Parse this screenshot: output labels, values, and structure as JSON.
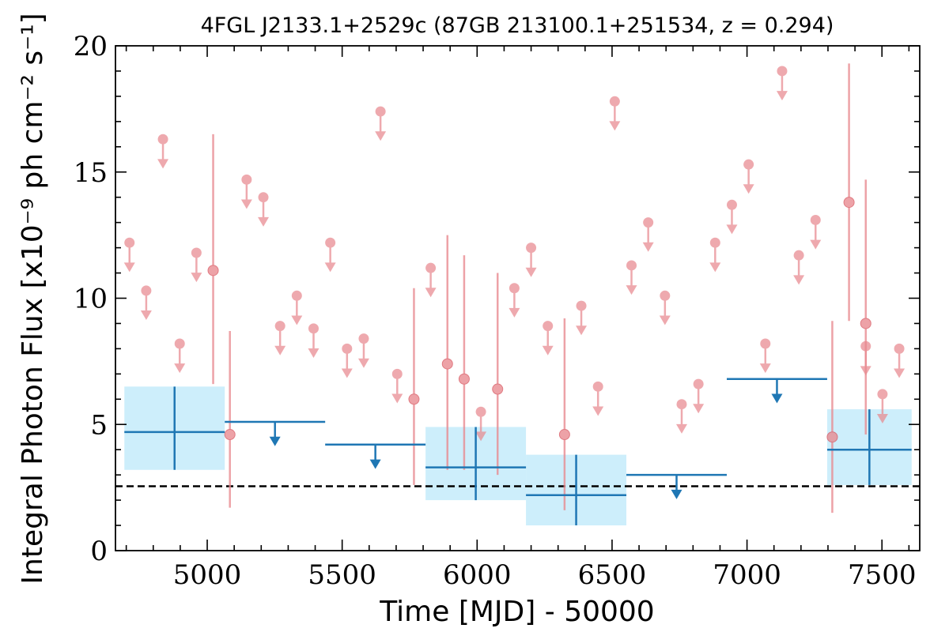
{
  "chart_data": {
    "type": "scatter",
    "title": "4FGL J2133.1+2529c (87GB 213100.1+251534, z = 0.294)",
    "xlabel": "Time [MJD] - 50000",
    "ylabel": "Integral Photon Flux [x10⁻⁹ ph cm⁻² s⁻¹]",
    "xlim": [
      4660,
      7640
    ],
    "ylim": [
      0,
      20
    ],
    "x_ticks": [
      5000,
      5500,
      6000,
      6500,
      7000,
      7500
    ],
    "y_ticks": [
      0,
      5,
      10,
      15,
      20
    ],
    "reference_line": {
      "y": 2.55,
      "style": "dashed",
      "color": "#000000"
    },
    "series": [
      {
        "color": "#e8898f",
        "upper_limits": [
          {
            "x": 4712,
            "y": 12.2
          },
          {
            "x": 4774,
            "y": 10.3
          },
          {
            "x": 4836,
            "y": 16.3
          },
          {
            "x": 4898,
            "y": 8.2
          },
          {
            "x": 4960,
            "y": 11.8
          },
          {
            "x": 5146,
            "y": 14.7
          },
          {
            "x": 5208,
            "y": 14.0
          },
          {
            "x": 5270,
            "y": 8.9
          },
          {
            "x": 5332,
            "y": 10.1
          },
          {
            "x": 5394,
            "y": 8.8
          },
          {
            "x": 5456,
            "y": 12.2
          },
          {
            "x": 5518,
            "y": 8.0
          },
          {
            "x": 5580,
            "y": 8.4
          },
          {
            "x": 5642,
            "y": 17.4
          },
          {
            "x": 5704,
            "y": 7.0
          },
          {
            "x": 5828,
            "y": 11.2
          },
          {
            "x": 6014,
            "y": 5.5
          },
          {
            "x": 6138,
            "y": 10.4
          },
          {
            "x": 6200,
            "y": 12.0
          },
          {
            "x": 6262,
            "y": 8.9
          },
          {
            "x": 6386,
            "y": 9.7
          },
          {
            "x": 6448,
            "y": 6.5
          },
          {
            "x": 6510,
            "y": 17.8
          },
          {
            "x": 6572,
            "y": 11.3
          },
          {
            "x": 6634,
            "y": 13.0
          },
          {
            "x": 6696,
            "y": 10.1
          },
          {
            "x": 6758,
            "y": 5.8
          },
          {
            "x": 6820,
            "y": 6.6
          },
          {
            "x": 6882,
            "y": 12.2
          },
          {
            "x": 6944,
            "y": 13.7
          },
          {
            "x": 7006,
            "y": 15.3
          },
          {
            "x": 7068,
            "y": 8.2
          },
          {
            "x": 7130,
            "y": 19.0
          },
          {
            "x": 7192,
            "y": 11.7
          },
          {
            "x": 7254,
            "y": 13.1
          },
          {
            "x": 7440,
            "y": 8.1
          },
          {
            "x": 7502,
            "y": 6.2
          },
          {
            "x": 7564,
            "y": 8.0
          }
        ],
        "detections": [
          {
            "x": 5022,
            "y": 11.1,
            "ylo": 6.6,
            "yhi": 16.5
          },
          {
            "x": 5084,
            "y": 4.6,
            "ylo": 1.7,
            "yhi": 8.7
          },
          {
            "x": 5766,
            "y": 6.0,
            "ylo": 2.6,
            "yhi": 10.4
          },
          {
            "x": 5890,
            "y": 7.4,
            "ylo": 3.2,
            "yhi": 12.5
          },
          {
            "x": 5952,
            "y": 6.8,
            "ylo": 3.2,
            "yhi": 11.7
          },
          {
            "x": 6076,
            "y": 6.4,
            "ylo": 3.0,
            "yhi": 11.0
          },
          {
            "x": 6324,
            "y": 4.6,
            "ylo": 1.6,
            "yhi": 9.2
          },
          {
            "x": 7316,
            "y": 4.5,
            "ylo": 1.5,
            "yhi": 9.1
          },
          {
            "x": 7378,
            "y": 13.8,
            "ylo": 9.1,
            "yhi": 19.3
          },
          {
            "x": 7440,
            "y": 9.0,
            "ylo": 4.6,
            "yhi": 14.7
          }
        ]
      },
      {
        "color": "#1f77b4",
        "band_color": "#cdeefb",
        "bins": [
          {
            "x0": 4693,
            "x1": 5065,
            "y": 4.7,
            "ylo": 3.2,
            "yhi": 6.5,
            "limit": false
          },
          {
            "x0": 5065,
            "x1": 5437,
            "y": 5.1,
            "limit": true
          },
          {
            "x0": 5437,
            "x1": 5809,
            "y": 4.2,
            "limit": true
          },
          {
            "x0": 5809,
            "x1": 6181,
            "y": 3.3,
            "ylo": 2.0,
            "yhi": 4.9,
            "limit": false
          },
          {
            "x0": 6181,
            "x1": 6553,
            "y": 2.2,
            "ylo": 1.0,
            "yhi": 3.8,
            "limit": false
          },
          {
            "x0": 6553,
            "x1": 6925,
            "y": 3.0,
            "limit": true
          },
          {
            "x0": 6925,
            "x1": 7297,
            "y": 6.8,
            "limit": true
          },
          {
            "x0": 7297,
            "x1": 7610,
            "y": 4.0,
            "ylo": 2.6,
            "yhi": 5.6,
            "limit": false
          }
        ]
      }
    ]
  }
}
